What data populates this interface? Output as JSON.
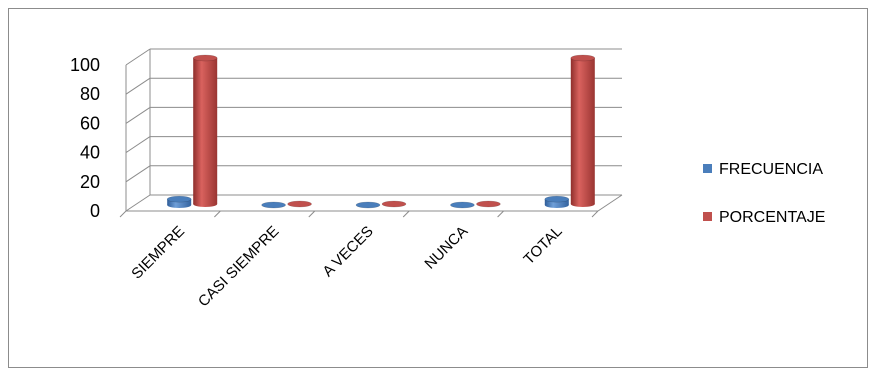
{
  "chart_data": {
    "type": "bar",
    "categories": [
      "SIEMPRE",
      "CASI SIEMPRE",
      "A VECES",
      "NUNCA",
      "TOTAL"
    ],
    "series": [
      {
        "name": "FRECUENCIA",
        "values": [
          4,
          0,
          0,
          0,
          4
        ],
        "color": "#4a7ebb"
      },
      {
        "name": "PORCENTAJE",
        "values": [
          100,
          0,
          0,
          0,
          100
        ],
        "color": "#c0504d"
      }
    ],
    "yticks": [
      0,
      20,
      40,
      60,
      80,
      100
    ],
    "ylim": [
      0,
      100
    ],
    "grid": true,
    "legend_position": "right",
    "style": "3d-cylinder"
  }
}
